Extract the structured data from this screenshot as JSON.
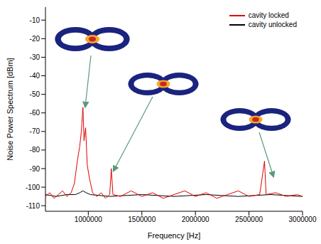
{
  "chart_data": {
    "type": "line",
    "x_label": "Frequency [Hz]",
    "y_label": "Noise Power Spectrum [dBm]",
    "xlim": [
      600000,
      3000000
    ],
    "xticks": [
      1000000,
      1500000,
      2000000,
      2500000,
      3000000
    ],
    "ylim": [
      -113,
      -3
    ],
    "yticks": [
      -110,
      -100,
      -90,
      -80,
      -70,
      -60,
      -50,
      -40,
      -30,
      -20,
      -10
    ],
    "legend": "upper right",
    "series": [
      {
        "name": "cavity locked",
        "color": "#e00000",
        "x": [
          600000,
          640000,
          680000,
          720000,
          760000,
          800000,
          840000,
          870000,
          900000,
          920000,
          935000,
          950000,
          960000,
          975000,
          990000,
          1010000,
          1040000,
          1080000,
          1120000,
          1160000,
          1200000,
          1215000,
          1230000,
          1300000,
          1400000,
          1500000,
          1600000,
          1700000,
          1800000,
          1900000,
          2000000,
          2100000,
          2200000,
          2300000,
          2400000,
          2500000,
          2600000,
          2645000,
          2660000,
          2750000,
          2850000,
          2950000,
          3000000
        ],
        "values": [
          -105,
          -103,
          -106,
          -104,
          -102,
          -105,
          -103,
          -98,
          -85,
          -78,
          -70,
          -57,
          -75,
          -68,
          -88,
          -95,
          -103,
          -105,
          -103,
          -106,
          -104,
          -90,
          -104,
          -105,
          -102,
          -105,
          -103,
          -106,
          -104,
          -102,
          -105,
          -103,
          -106,
          -104,
          -102,
          -105,
          -104,
          -86,
          -104,
          -103,
          -105,
          -104,
          -105
        ]
      },
      {
        "name": "cavity unlocked",
        "color": "#000000",
        "x": [
          600000,
          700000,
          800000,
          880000,
          920000,
          950000,
          980000,
          1020000,
          1200000,
          1500000,
          1800000,
          2100000,
          2400000,
          2700000,
          3000000
        ],
        "values": [
          -104,
          -105,
          -104,
          -104,
          -103,
          -102,
          -103,
          -104,
          -105,
          -104,
          -105,
          -104,
          -105,
          -104,
          -105
        ]
      }
    ]
  }
}
